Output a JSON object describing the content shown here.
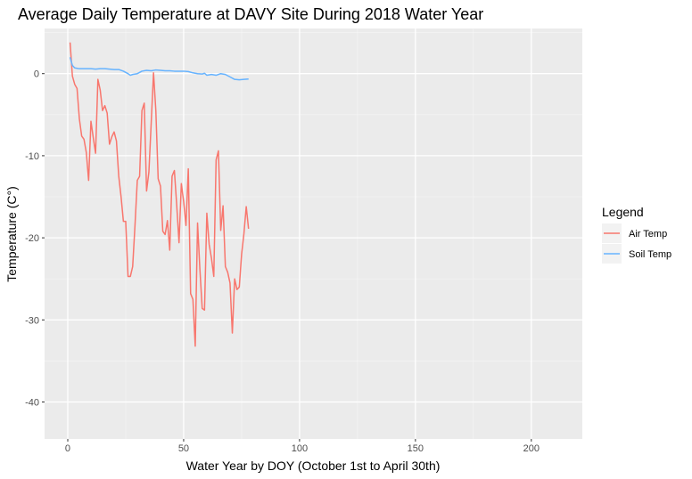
{
  "chart_data": {
    "type": "line",
    "title": "Average Daily Temperature at DAVY Site During 2018 Water Year",
    "xlabel": "Water Year by DOY (October 1st to April 30th)",
    "ylabel": "Temperature (C°)",
    "xlim": [
      -10,
      222
    ],
    "ylim": [
      -44.5,
      5.5
    ],
    "x_ticks": [
      0,
      50,
      100,
      150,
      200
    ],
    "y_ticks": [
      -40,
      -30,
      -20,
      -10,
      0
    ],
    "grid": true,
    "legend": {
      "title": "Legend",
      "position": "right"
    },
    "series": [
      {
        "name": "Air Temp",
        "color": "#f8766d",
        "x": [
          1,
          2,
          3,
          4,
          5,
          6,
          7,
          8,
          9,
          10,
          11,
          12,
          13,
          14,
          15,
          16,
          17,
          18,
          19,
          20,
          21,
          22,
          23,
          24,
          25,
          26,
          27,
          28,
          29,
          30,
          31,
          32,
          33,
          34,
          35,
          36,
          37,
          38,
          39,
          40,
          41,
          42,
          43,
          44,
          45,
          46,
          47,
          48,
          49,
          50,
          51,
          52,
          53,
          54,
          55,
          56,
          57,
          58,
          59,
          60,
          61,
          62,
          63,
          64,
          65,
          66,
          67,
          68,
          69,
          70,
          71,
          72,
          73,
          74,
          75,
          76,
          77,
          78
        ],
        "values": [
          3.8,
          -0.3,
          -1.3,
          -1.8,
          -5.5,
          -7.6,
          -8.0,
          -9.6,
          -13.0,
          -5.8,
          -7.8,
          -9.7,
          -0.7,
          -2.0,
          -4.5,
          -3.9,
          -4.8,
          -8.6,
          -7.7,
          -7.1,
          -8.2,
          -12.5,
          -15.0,
          -18.0,
          -18.0,
          -24.7,
          -24.7,
          -23.5,
          -18.5,
          -13.0,
          -12.5,
          -4.5,
          -3.6,
          -14.3,
          -12.0,
          -6.0,
          0.1,
          -4.5,
          -12.8,
          -13.7,
          -19.2,
          -19.6,
          -17.9,
          -21.5,
          -12.5,
          -11.8,
          -16.0,
          -20.6,
          -13.4,
          -15.6,
          -18.5,
          -11.6,
          -26.8,
          -27.5,
          -33.2,
          -18.2,
          -23.8,
          -28.6,
          -28.8,
          -17.0,
          -20.8,
          -22.5,
          -24.7,
          -10.5,
          -9.4,
          -19.1,
          -16.1,
          -23.5,
          -24.2,
          -25.5,
          -31.6,
          -25.0,
          -26.3,
          -26.0,
          -22.0,
          -19.5,
          -16.2,
          -18.9
        ]
      },
      {
        "name": "Soil Temp",
        "color": "#66b3ff",
        "x": [
          1,
          2,
          3,
          4,
          5,
          6,
          8,
          10,
          12,
          14,
          16,
          18,
          20,
          22,
          24,
          26,
          27,
          28,
          30,
          32,
          34,
          36,
          38,
          40,
          42,
          44,
          46,
          48,
          50,
          52,
          54,
          56,
          58,
          59,
          60,
          62,
          64,
          66,
          68,
          70,
          72,
          74,
          76,
          78
        ],
        "values": [
          2.0,
          1.0,
          0.7,
          0.65,
          0.6,
          0.6,
          0.6,
          0.6,
          0.55,
          0.6,
          0.6,
          0.55,
          0.5,
          0.5,
          0.3,
          0.0,
          -0.2,
          -0.1,
          0.0,
          0.3,
          0.4,
          0.35,
          0.45,
          0.4,
          0.35,
          0.35,
          0.3,
          0.3,
          0.3,
          0.25,
          0.1,
          0.0,
          -0.05,
          0.05,
          -0.2,
          -0.1,
          -0.2,
          0.0,
          -0.1,
          -0.4,
          -0.7,
          -0.75,
          -0.7,
          -0.65
        ]
      }
    ]
  }
}
